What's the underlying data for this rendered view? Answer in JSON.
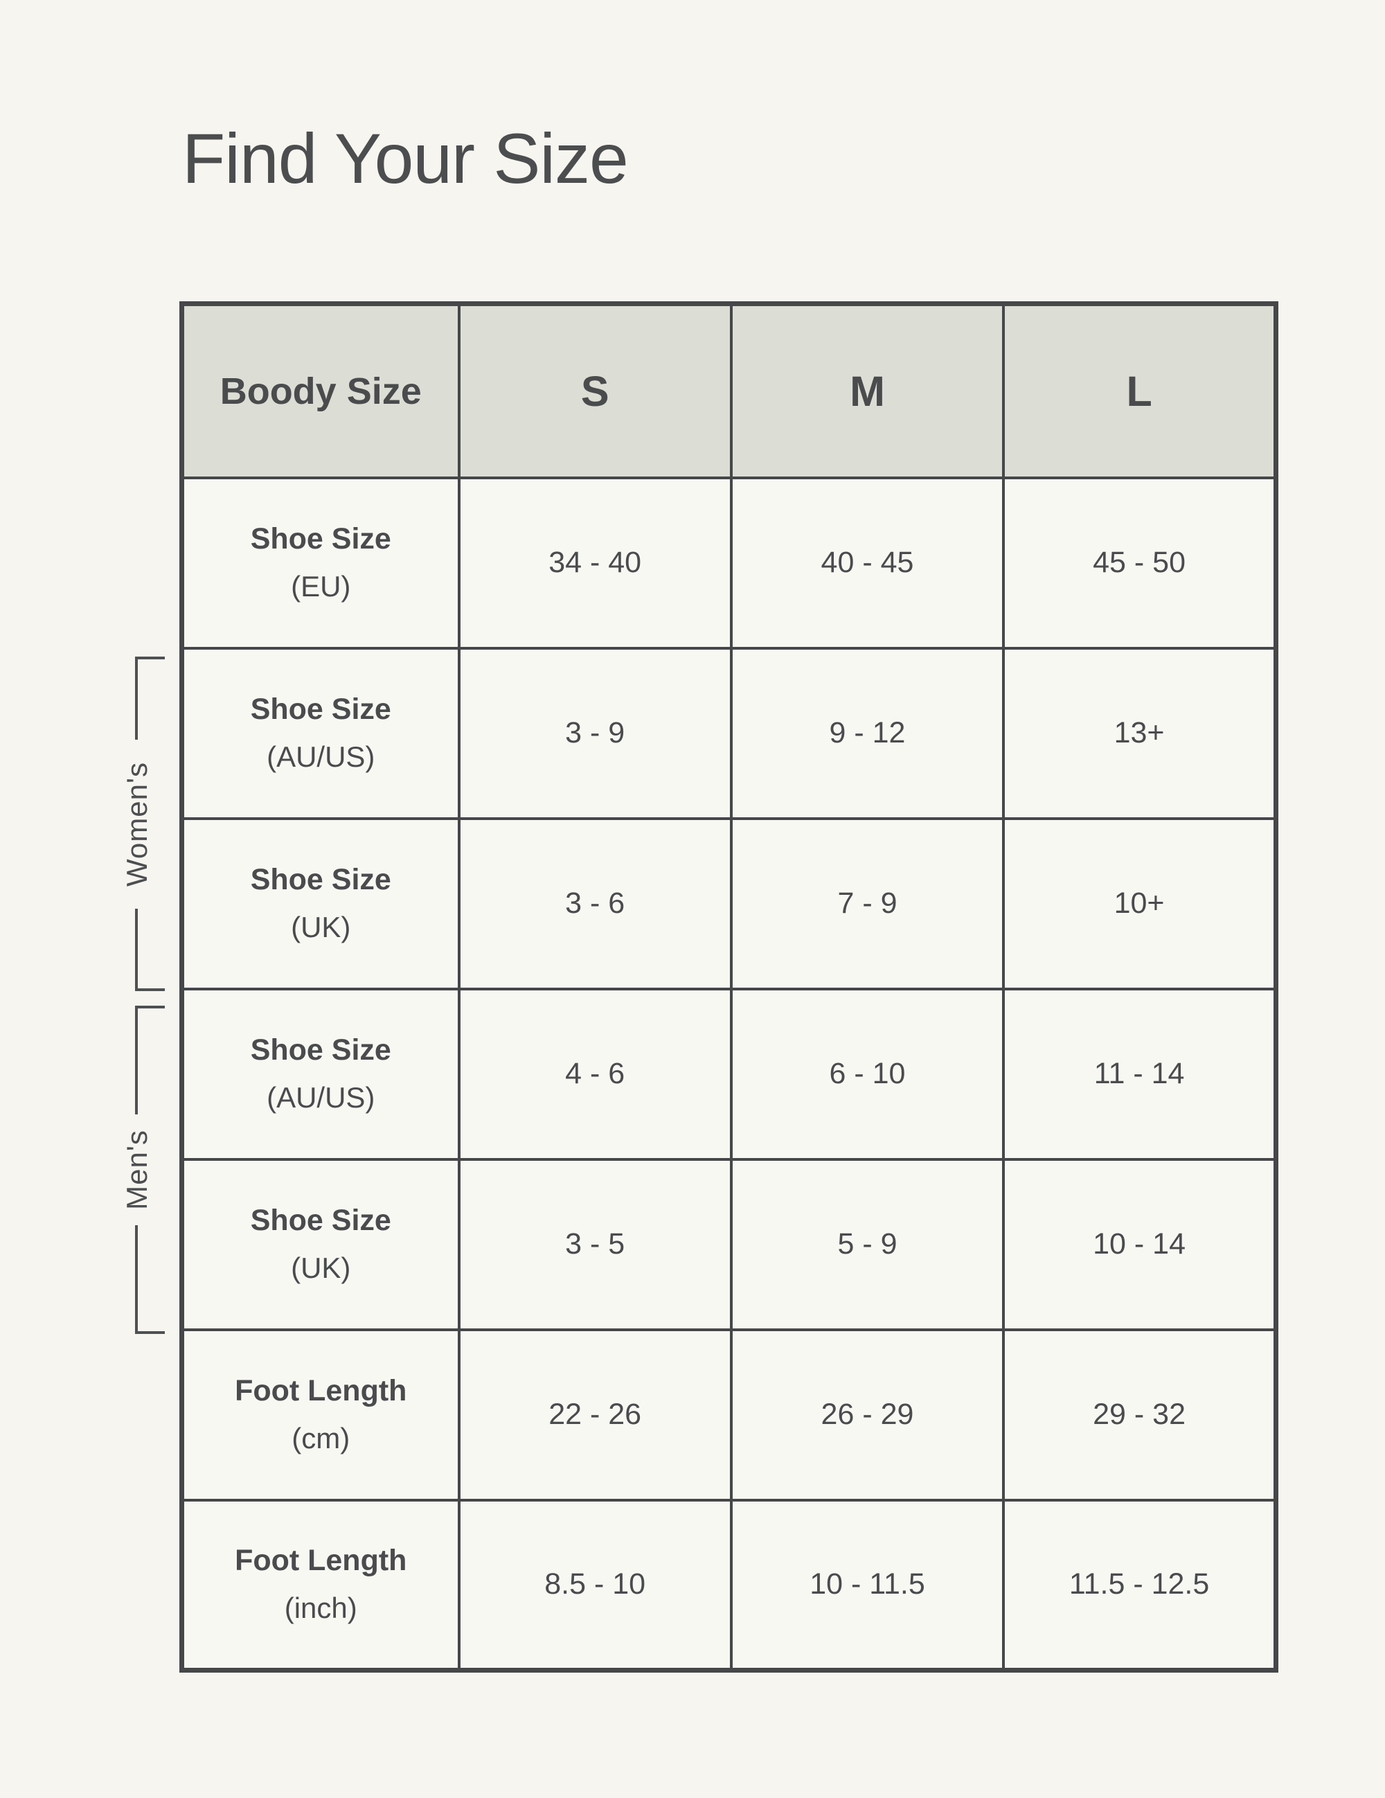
{
  "chart_data": {
    "type": "table",
    "title": "Find Your Size",
    "columns": [
      "Boody Size",
      "S",
      "M",
      "L"
    ],
    "rows": [
      {
        "label": "Shoe Size",
        "unit": "(EU)",
        "group": null,
        "values": [
          "34 - 40",
          "40 - 45",
          "45 - 50"
        ]
      },
      {
        "label": "Shoe Size",
        "unit": "(AU/US)",
        "group": "Women's",
        "values": [
          "3 - 9",
          "9 - 12",
          "13+"
        ]
      },
      {
        "label": "Shoe Size",
        "unit": "(UK)",
        "group": "Women's",
        "values": [
          "3 - 6",
          "7 - 9",
          "10+"
        ]
      },
      {
        "label": "Shoe Size",
        "unit": "(AU/US)",
        "group": "Men's",
        "values": [
          "4 - 6",
          "6 - 10",
          "11 - 14"
        ]
      },
      {
        "label": "Shoe Size",
        "unit": "(UK)",
        "group": "Men's",
        "values": [
          "3 - 5",
          "5 - 9",
          "10 - 14"
        ]
      },
      {
        "label": "Foot Length",
        "unit": "(cm)",
        "group": null,
        "values": [
          "22 - 26",
          "26 - 29",
          "29 - 32"
        ]
      },
      {
        "label": "Foot Length",
        "unit": "(inch)",
        "group": null,
        "values": [
          "8.5 - 10",
          "10 - 11.5",
          "11.5 - 12.5"
        ]
      }
    ],
    "group_labels": [
      "Women's",
      "Men's"
    ],
    "layout": {
      "grid": "on",
      "group_brackets": "left side, Women's spans rows 2-3, Men's spans rows 4-5"
    }
  },
  "colors": {
    "page_background": "#F6F5F0",
    "cell_background": "#F8F8F3",
    "header_background": "#DCDDD5",
    "border": "#454749",
    "text": "#4A4B4D"
  }
}
